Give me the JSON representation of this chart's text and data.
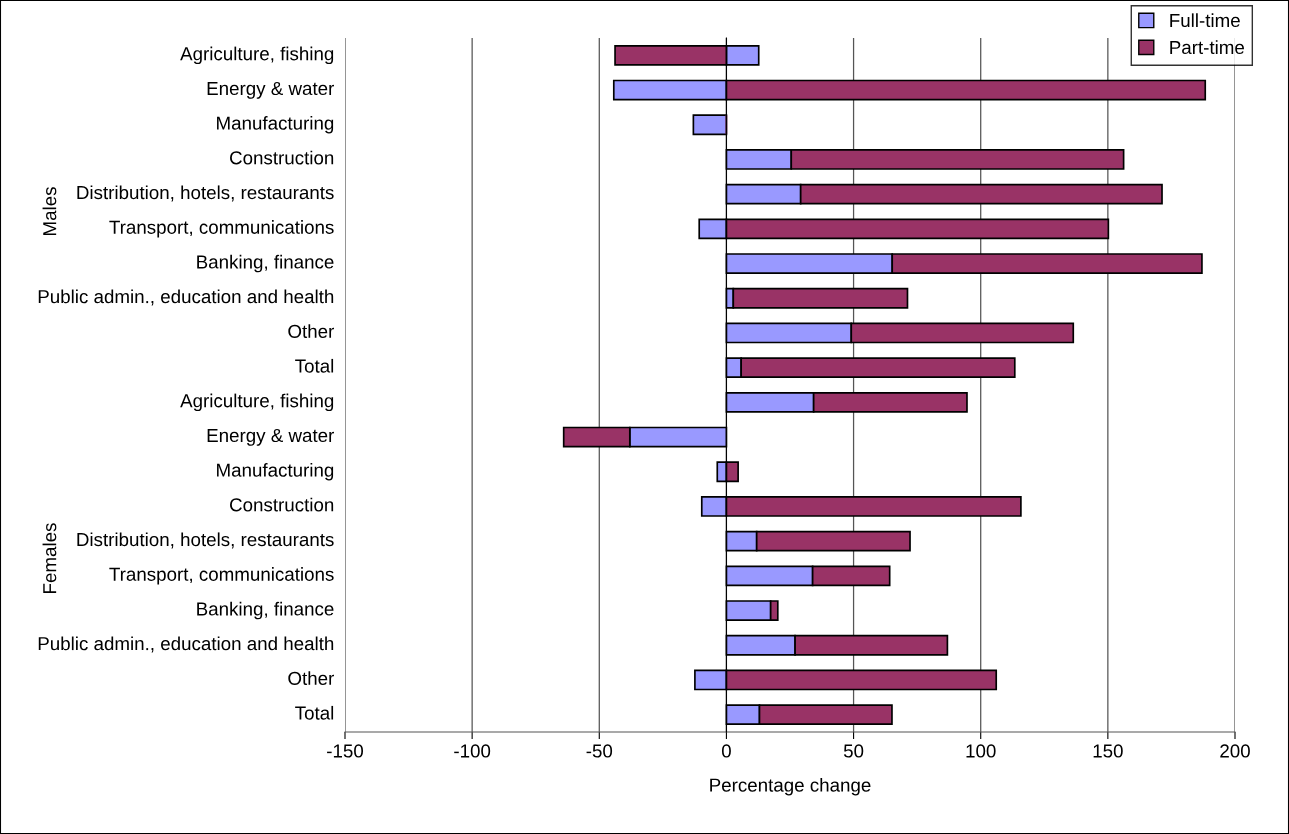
{
  "chart_data": {
    "type": "bar",
    "orientation": "horizontal",
    "stacked": true,
    "categories": [
      "Agriculture, fishing",
      "Energy & water",
      "Manufacturing",
      "Construction",
      "Distribution, hotels, restaurants",
      "Transport, communications",
      "Banking, finance",
      "Public admin., education and health",
      "Other",
      "Total",
      "Agriculture, fishing",
      "Energy & water",
      "Manufacturing",
      "Construction",
      "Distribution, hotels, restaurants",
      "Transport, communications",
      "Banking, finance",
      "Public admin., education and health",
      "Other",
      "Total"
    ],
    "series": [
      {
        "name": "Full-time",
        "color": "#9999ff",
        "values": [
          12.7,
          -44.3,
          -13.0,
          25.5,
          29.2,
          -10.7,
          65.2,
          2.7,
          49.1,
          5.8,
          34.3,
          -38.0,
          -3.6,
          -9.7,
          11.9,
          33.9,
          17.4,
          27.0,
          -12.4,
          13.0
        ]
      },
      {
        "name": "Part-time",
        "color": "#993366",
        "values": [
          -43.8,
          188.3,
          0,
          130.7,
          142.1,
          150.2,
          121.8,
          68.5,
          87.3,
          107.6,
          60.3,
          -26.0,
          4.6,
          115.8,
          60.3,
          30.3,
          2.8,
          59.9,
          106.1,
          52.1
        ]
      }
    ],
    "xlabel": "Percentage change",
    "xlim": [
      -150,
      200
    ],
    "xticks": [
      -150,
      -100,
      -50,
      0,
      50,
      100,
      150,
      200
    ],
    "grid": "x",
    "legend": "top right",
    "annotations": [
      "Males",
      "Females"
    ]
  }
}
